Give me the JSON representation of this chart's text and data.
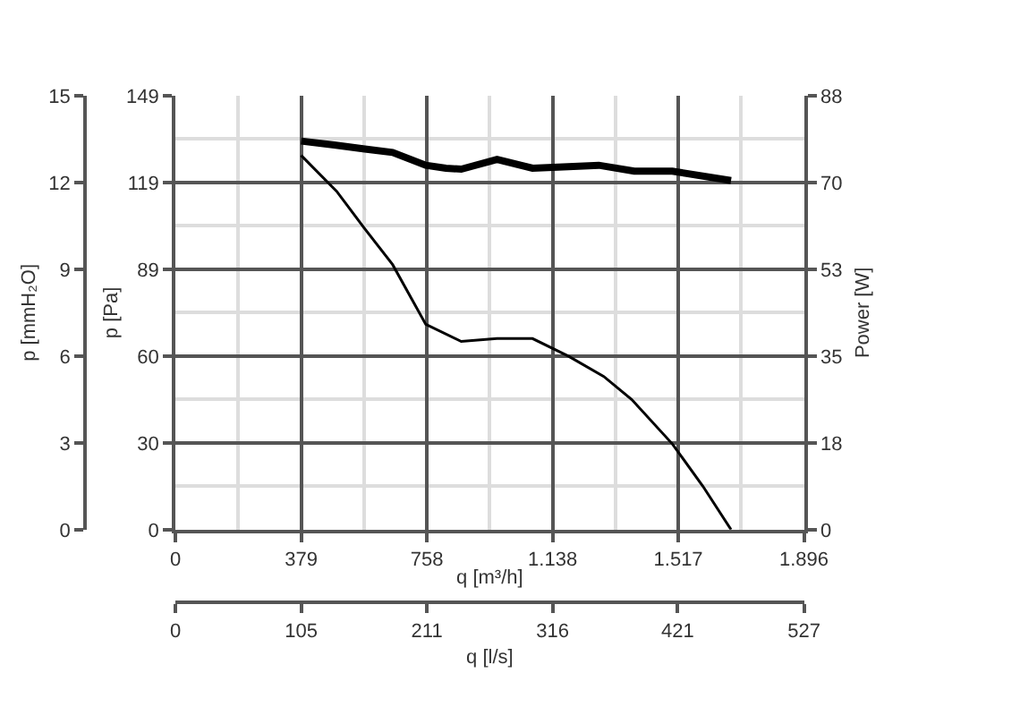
{
  "chart_data": {
    "type": "line",
    "xlabel": "q [m³/h]",
    "ylabel": "p [Pa]",
    "y2label": "Power [W]",
    "y3label": "p [mmH₂O]",
    "x2label": "q [l/s]",
    "xlim": [
      0,
      1896
    ],
    "xticks": [
      0,
      {
        "value": 379.2,
        "label": "379"
      },
      {
        "value": 758.4,
        "label": "758"
      },
      {
        "value": 1137.6,
        "label": "1.138"
      },
      {
        "value": 1516.8,
        "label": "1.517"
      },
      {
        "value": 1896,
        "label": "1.896"
      }
    ],
    "ylim": [
      0,
      149
    ],
    "yticks": [
      0,
      {
        "value": 29.8,
        "label": "30"
      },
      {
        "value": 59.6,
        "label": "60"
      },
      {
        "value": 89.4,
        "label": "89"
      },
      {
        "value": 119.2,
        "label": "119"
      },
      149
    ],
    "y2lim": [
      0,
      88
    ],
    "y2ticks": [
      0,
      {
        "value": 17.6,
        "label": "18"
      },
      {
        "value": 35.2,
        "label": "35"
      },
      {
        "value": 52.8,
        "label": "53"
      },
      {
        "value": 70.4,
        "label": "70"
      },
      88
    ],
    "y3lim": [
      0,
      15
    ],
    "y3ticks": [
      0,
      3,
      6,
      9,
      12,
      15
    ],
    "x2lim": [
      0,
      527
    ],
    "x2ticks": [
      0,
      {
        "value": 105.4,
        "label": "105"
      },
      {
        "value": 210.8,
        "label": "211"
      },
      {
        "value": 316.2,
        "label": "316"
      },
      421,
      527
    ],
    "grid": true,
    "marker": "none",
    "line_style": "solid",
    "series": [
      {
        "color": "#000000",
        "x": [
          379,
          486,
          571,
          655,
          755,
          862,
          970,
          1077,
          1185,
          1292,
          1376,
          1499,
          1591,
          1676
        ],
        "values": [
          128.5,
          116.2,
          103.3,
          91.0,
          70.5,
          64.6,
          65.6,
          65.6,
          59.6,
          52.6,
          44.7,
          29.4,
          14.9,
          0
        ]
      },
      {
        "color": "#000000",
        "axis": "y2",
        "x": [
          379,
          479,
          571,
          655,
          755,
          816,
          862,
          970,
          1077,
          1185,
          1277,
          1384,
          1499,
          1676
        ],
        "values": [
          78.8,
          78.0,
          77.2,
          76.5,
          73.9,
          73.3,
          73.1,
          75.1,
          73.3,
          73.6,
          73.9,
          72.7,
          72.7,
          70.8
        ]
      }
    ]
  }
}
